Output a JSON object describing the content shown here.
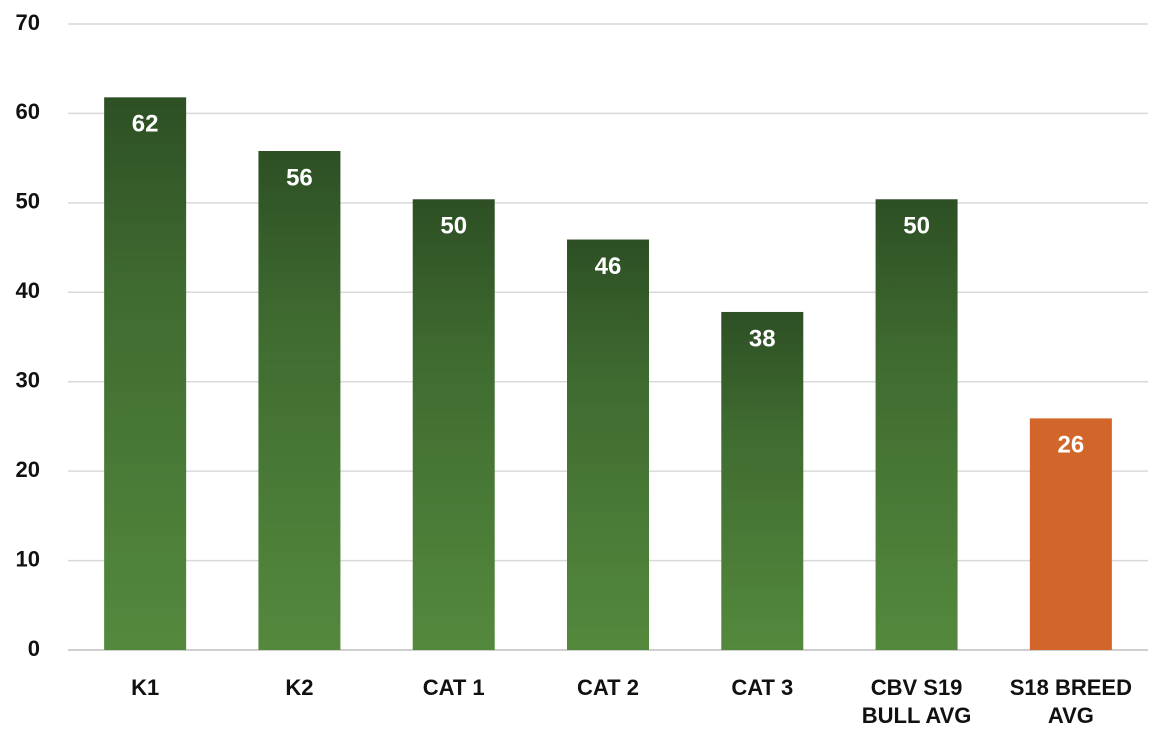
{
  "chart_data": {
    "type": "bar",
    "categories": [
      "K1",
      "K2",
      "CAT 1",
      "CAT 2",
      "CAT 3",
      "CBV S19 BULL AVG",
      "S18 BREED AVG"
    ],
    "values": [
      61.8,
      55.8,
      50.4,
      45.9,
      37.8,
      50.4,
      25.9
    ],
    "value_labels": [
      "62",
      "56",
      "50",
      "46",
      "38",
      "50",
      "26"
    ],
    "colors": [
      "green",
      "green",
      "green",
      "green",
      "green",
      "green",
      "#d2652a"
    ],
    "ylim": [
      0,
      70
    ],
    "yticks": [
      0,
      10,
      20,
      30,
      40,
      50,
      60,
      70
    ],
    "grid": true
  }
}
